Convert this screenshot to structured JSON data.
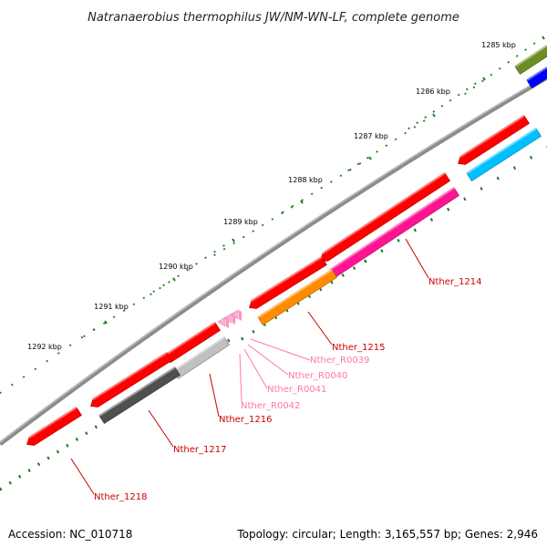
{
  "title": "Natranaerobius thermophilus JW/NM-WN-LF, complete genome",
  "footer": {
    "accession": "Accession: NC_010718",
    "summary": "Topology: circular; Length: 3,165,557 bp; Genes: 2,946"
  },
  "ruler": {
    "tick_labels": [
      "1285 kbp",
      "1286 kbp",
      "1287 kbp",
      "1288 kbp",
      "1289 kbp",
      "1290 kbp",
      "1291 kbp",
      "1292 kbp"
    ]
  },
  "features": [
    {
      "id": "olive-gene",
      "color": "#6b8e23",
      "track": "outer"
    },
    {
      "id": "blue-gene",
      "color": "#0000ff",
      "track": "inner"
    },
    {
      "id": "red-gene-a",
      "color": "#ff0000",
      "track": "outer"
    },
    {
      "id": "cyan-gene",
      "color": "#00bfff",
      "track": "inner"
    },
    {
      "id": "Nther_1214-red",
      "color": "#ff0000",
      "track": "outer"
    },
    {
      "id": "Nther_1214",
      "color": "#ff1493",
      "track": "inner"
    },
    {
      "id": "red-gene-b",
      "color": "#ff0000",
      "track": "outer"
    },
    {
      "id": "Nther_1215",
      "color": "#ff8c00",
      "track": "inner"
    },
    {
      "id": "Nther_R0039",
      "color": "#ffb6c1",
      "track": "outer"
    },
    {
      "id": "Nther_R0040",
      "color": "#ffb6c1",
      "track": "outer"
    },
    {
      "id": "Nther_R0041",
      "color": "#ffb6c1",
      "track": "outer"
    },
    {
      "id": "Nther_1216",
      "color": "#ff0000",
      "track": "outer"
    },
    {
      "id": "Nther_R0042",
      "color": "#c0c0c0",
      "track": "inner"
    },
    {
      "id": "Nther_1217",
      "color": "#ff0000",
      "track": "outer"
    },
    {
      "id": "Nther_1217-grey",
      "color": "#505050",
      "track": "inner"
    },
    {
      "id": "Nther_1218",
      "color": "#ff0000",
      "track": "outer"
    }
  ],
  "labels": [
    {
      "text": "Nther_1214",
      "color": "#cc0000"
    },
    {
      "text": "Nther_1215",
      "color": "#cc0000"
    },
    {
      "text": "Nther_R0039",
      "color": "#ff77aa"
    },
    {
      "text": "Nther_R0040",
      "color": "#ff77aa"
    },
    {
      "text": "Nther_R0041",
      "color": "#ff77aa"
    },
    {
      "text": "Nther_R0042",
      "color": "#ff77aa"
    },
    {
      "text": "Nther_1216",
      "color": "#cc0000"
    },
    {
      "text": "Nther_1217",
      "color": "#cc0000"
    },
    {
      "text": "Nther_1218",
      "color": "#cc0000"
    }
  ]
}
